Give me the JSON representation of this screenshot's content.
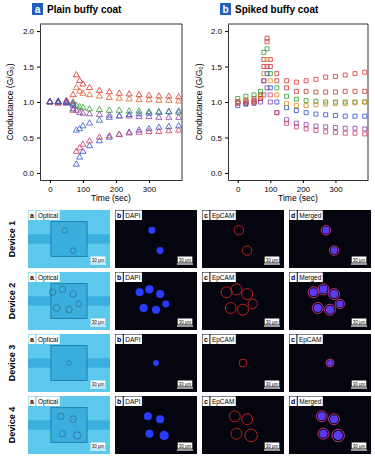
{
  "chart_data": [
    {
      "type": "scatter",
      "title": "Plain buffy coat",
      "annotations": [
        "a"
      ],
      "marker": "triangle",
      "x_label": "Time (sec)",
      "y_label": "Conductance (G/G₀)",
      "xlim": [
        -30,
        400
      ],
      "xticks": [
        0,
        100,
        200,
        300
      ],
      "ylim": [
        -0.1,
        2.1
      ],
      "yticks": [
        {
          "value": 0,
          "label": "0.0"
        },
        0.5,
        {
          "value": 1,
          "label": "1.0"
        },
        1.5,
        {
          "value": 2,
          "label": "2.0"
        }
      ],
      "grid": false,
      "x": [
        0,
        25,
        50,
        70,
        80,
        90,
        100,
        120,
        150,
        180,
        210,
        240,
        270,
        300,
        330,
        360,
        390
      ],
      "series": [
        {
          "color": "#e0302a",
          "values": [
            1.0,
            1.0,
            1.02,
            1.1,
            1.38,
            1.3,
            1.25,
            1.2,
            1.16,
            1.14,
            1.12,
            1.11,
            1.1,
            1.09,
            1.08,
            1.08,
            1.07
          ]
        },
        {
          "color": "#d9622b",
          "values": [
            1.0,
            0.99,
            1.0,
            1.0,
            1.2,
            1.15,
            1.12,
            1.1,
            1.08,
            1.06,
            1.05,
            1.04,
            1.03,
            1.03,
            1.02,
            1.02,
            1.01
          ]
        },
        {
          "color": "#2ca02c",
          "values": [
            1.0,
            1.01,
            0.99,
            0.98,
            0.95,
            0.93,
            0.92,
            0.9,
            0.89,
            0.88,
            0.88,
            0.87,
            0.87,
            0.86,
            0.86,
            0.86,
            0.85
          ]
        },
        {
          "color": "#8b3fa8",
          "values": [
            1.0,
            1.0,
            0.98,
            0.95,
            0.88,
            0.85,
            0.84,
            0.83,
            0.82,
            0.81,
            0.8,
            0.8,
            0.79,
            0.79,
            0.78,
            0.78,
            0.78
          ]
        },
        {
          "color": "#2a4fd0",
          "values": [
            1.0,
            1.0,
            0.99,
            0.9,
            0.12,
            0.22,
            0.3,
            0.38,
            0.45,
            0.5,
            0.54,
            0.57,
            0.6,
            0.62,
            0.64,
            0.65,
            0.66
          ]
        },
        {
          "color": "#d23b6a",
          "values": [
            1.0,
            0.98,
            1.0,
            0.88,
            0.3,
            0.35,
            0.4,
            0.45,
            0.5,
            0.52,
            0.54,
            0.56,
            0.57,
            0.58,
            0.58,
            0.59,
            0.6
          ]
        },
        {
          "color": "#3a5ec8",
          "values": [
            1.0,
            1.0,
            1.0,
            0.97,
            0.6,
            0.62,
            0.66,
            0.7,
            0.74,
            0.78,
            0.8,
            0.82,
            0.83,
            0.84,
            0.85,
            0.86,
            0.87
          ]
        }
      ]
    },
    {
      "type": "scatter",
      "title": "Spiked buffy coat",
      "annotations": [
        "b"
      ],
      "marker": "square",
      "x_label": "Time (sec)",
      "y_label": "Conductance (G/G₀)",
      "xlim": [
        -30,
        400
      ],
      "xticks": [
        0,
        100,
        200,
        300
      ],
      "ylim": [
        -0.1,
        2.1
      ],
      "yticks": [
        {
          "value": 0,
          "label": "0.0"
        },
        0.5,
        {
          "value": 1,
          "label": "1.0"
        },
        1.5,
        {
          "value": 2,
          "label": "2.0"
        }
      ],
      "grid": false,
      "x": [
        0,
        25,
        50,
        70,
        80,
        90,
        100,
        120,
        150,
        180,
        210,
        240,
        270,
        300,
        330,
        360,
        390
      ],
      "series": [
        {
          "color": "#e0302a",
          "values": [
            1.0,
            1.02,
            1.05,
            1.1,
            1.5,
            1.85,
            1.6,
            1.4,
            1.3,
            1.28,
            1.3,
            1.32,
            1.35,
            1.36,
            1.38,
            1.4,
            1.42
          ]
        },
        {
          "color": "#c0392b",
          "values": [
            1.0,
            0.98,
            1.0,
            1.05,
            1.6,
            1.9,
            1.5,
            1.3,
            1.2,
            1.15,
            1.15,
            1.14,
            1.14,
            1.14,
            1.15,
            1.15,
            1.15
          ]
        },
        {
          "color": "#2ca02c",
          "values": [
            1.05,
            1.08,
            1.1,
            1.15,
            1.7,
            1.75,
            1.4,
            1.2,
            1.08,
            1.04,
            1.02,
            1.01,
            1.0,
            1.0,
            1.0,
            1.0,
            1.0
          ]
        },
        {
          "color": "#2a4fd0",
          "values": [
            0.95,
            0.97,
            1.0,
            1.05,
            1.3,
            1.4,
            1.2,
            1.0,
            0.92,
            0.88,
            0.85,
            0.83,
            0.82,
            0.81,
            0.8,
            0.8,
            0.8
          ]
        },
        {
          "color": "#8b3fa8",
          "values": [
            1.0,
            1.0,
            0.98,
            1.0,
            1.1,
            1.2,
            1.0,
            0.85,
            0.75,
            0.7,
            0.68,
            0.66,
            0.65,
            0.64,
            0.63,
            0.63,
            0.62
          ]
        },
        {
          "color": "#d23b6a",
          "values": [
            0.98,
            1.0,
            1.02,
            1.05,
            1.3,
            1.5,
            1.1,
            0.85,
            0.7,
            0.65,
            0.62,
            0.6,
            0.58,
            0.57,
            0.56,
            0.56,
            0.55
          ]
        },
        {
          "color": "#e08a1e",
          "values": [
            1.0,
            1.03,
            1.0,
            1.08,
            1.4,
            1.6,
            1.3,
            1.1,
            0.98,
            0.95,
            0.95,
            0.96,
            0.97,
            0.98,
            0.98,
            0.99,
            1.0
          ]
        }
      ]
    }
  ],
  "image_panels": {
    "rows": [
      {
        "label": "Device 1",
        "panels": [
          {
            "letter": "a",
            "title": "Optical",
            "scale_bar": "30 μm"
          },
          {
            "letter": "b",
            "title": "DAPI",
            "scale_bar": "30 μm"
          },
          {
            "letter": "c",
            "title": "EpCAM",
            "scale_bar": "30 μm"
          },
          {
            "letter": "d",
            "title": "Merged",
            "scale_bar": "30 μm"
          }
        ]
      },
      {
        "label": "Device 2",
        "panels": [
          {
            "letter": "a",
            "title": "Optical",
            "scale_bar": "30 μm"
          },
          {
            "letter": "b",
            "title": "DAPI",
            "scale_bar": "30 μm"
          },
          {
            "letter": "c",
            "title": "EpCAM",
            "scale_bar": "30 μm"
          },
          {
            "letter": "d",
            "title": "Merged",
            "scale_bar": "30 μm"
          }
        ]
      },
      {
        "label": "Device 3",
        "panels": [
          {
            "letter": "a",
            "title": "Optical",
            "scale_bar": "30 μm"
          },
          {
            "letter": "b",
            "title": "DAPI",
            "scale_bar": "30 μm"
          },
          {
            "letter": "c",
            "title": "EpCAM",
            "scale_bar": "30 μm"
          },
          {
            "letter": "c",
            "title": "EpCAM",
            "scale_bar": "30 μm"
          }
        ]
      },
      {
        "label": "Device 4",
        "panels": [
          {
            "letter": "a",
            "title": "Optical",
            "scale_bar": "30 μm"
          },
          {
            "letter": "b",
            "title": "DAPI",
            "scale_bar": "30 μm"
          },
          {
            "letter": "c",
            "title": "EpCAM",
            "scale_bar": "30 μm"
          },
          {
            "letter": "d",
            "title": "Merged",
            "scale_bar": "30 μm"
          }
        ]
      }
    ]
  }
}
